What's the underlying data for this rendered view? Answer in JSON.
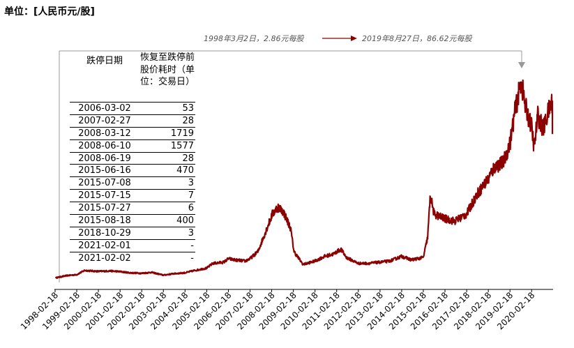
{
  "unit_label": "单位：[人民币元/股]",
  "annotation": {
    "start_text": "1998年3月2日，2.86元每股",
    "end_text": "2019年8月27日，86.62元每股"
  },
  "table": {
    "headers": [
      "跌停日期",
      "恢复至跌停前股价耗时（单位：交易日）"
    ],
    "rows": [
      [
        "2006-03-02",
        "53"
      ],
      [
        "2007-02-27",
        "28"
      ],
      [
        "2008-03-12",
        "1719"
      ],
      [
        "2008-06-10",
        "1577"
      ],
      [
        "2008-06-19",
        "28"
      ],
      [
        "2015-06-16",
        "470"
      ],
      [
        "2015-07-08",
        "3"
      ],
      [
        "2015-07-15",
        "7"
      ],
      [
        "2015-07-27",
        "6"
      ],
      [
        "2015-08-18",
        "400"
      ],
      [
        "2018-10-29",
        "3"
      ],
      [
        "2021-02-01",
        "-"
      ],
      [
        "2021-02-02",
        "-"
      ]
    ]
  },
  "chart_data": {
    "type": "line",
    "title": "",
    "xlabel": "",
    "ylabel": "",
    "ylim": [
      0,
      92
    ],
    "color": "#8b0000",
    "x_tick_labels": [
      "1998-02-18",
      "1999-02-18",
      "2000-02-18",
      "2001-02-18",
      "2002-02-18",
      "2003-02-18",
      "2004-02-18",
      "2005-02-18",
      "2006-02-18",
      "2007-02-18",
      "2008-02-18",
      "2009-02-18",
      "2010-02-18",
      "2011-02-18",
      "2012-02-18",
      "2013-02-18",
      "2014-02-18",
      "2015-02-18",
      "2016-02-18",
      "2017-02-18",
      "2018-02-18",
      "2019-02-18",
      "2020-02-18"
    ],
    "series": [
      {
        "values": [
          {
            "x": "1998-03-02",
            "y": 2.86
          },
          {
            "x": "1998-09-01",
            "y": 3.8
          },
          {
            "x": "1999-02-18",
            "y": 4.2
          },
          {
            "x": "1999-07-01",
            "y": 6.0
          },
          {
            "x": "2000-02-18",
            "y": 5.6
          },
          {
            "x": "2000-09-01",
            "y": 5.8
          },
          {
            "x": "2001-02-18",
            "y": 5.5
          },
          {
            "x": "2001-08-01",
            "y": 5.0
          },
          {
            "x": "2002-02-18",
            "y": 4.8
          },
          {
            "x": "2002-08-01",
            "y": 5.2
          },
          {
            "x": "2003-02-18",
            "y": 4.0
          },
          {
            "x": "2003-08-01",
            "y": 4.6
          },
          {
            "x": "2004-02-18",
            "y": 5.0
          },
          {
            "x": "2004-08-01",
            "y": 6.0
          },
          {
            "x": "2005-02-18",
            "y": 7.0
          },
          {
            "x": "2005-06-01",
            "y": 9.0
          },
          {
            "x": "2005-12-01",
            "y": 9.5
          },
          {
            "x": "2006-02-18",
            "y": 11.0
          },
          {
            "x": "2006-06-01",
            "y": 10.5
          },
          {
            "x": "2006-12-01",
            "y": 10.0
          },
          {
            "x": "2007-02-18",
            "y": 11.0
          },
          {
            "x": "2007-07-01",
            "y": 14.0
          },
          {
            "x": "2007-12-01",
            "y": 24.0
          },
          {
            "x": "2008-03-01",
            "y": 30.0
          },
          {
            "x": "2008-06-01",
            "y": 33.0
          },
          {
            "x": "2008-09-01",
            "y": 31.0
          },
          {
            "x": "2009-01-01",
            "y": 24.0
          },
          {
            "x": "2009-03-01",
            "y": 14.0
          },
          {
            "x": "2009-08-01",
            "y": 8.5
          },
          {
            "x": "2010-02-18",
            "y": 10.0
          },
          {
            "x": "2010-08-01",
            "y": 12.0
          },
          {
            "x": "2011-01-01",
            "y": 13.0
          },
          {
            "x": "2011-02-18",
            "y": 14.0
          },
          {
            "x": "2011-05-01",
            "y": 15.0
          },
          {
            "x": "2011-08-01",
            "y": 11.5
          },
          {
            "x": "2012-02-18",
            "y": 9.0
          },
          {
            "x": "2012-08-01",
            "y": 9.0
          },
          {
            "x": "2013-02-18",
            "y": 9.5
          },
          {
            "x": "2013-08-01",
            "y": 10.0
          },
          {
            "x": "2014-02-18",
            "y": 12.0
          },
          {
            "x": "2014-08-01",
            "y": 10.5
          },
          {
            "x": "2015-02-18",
            "y": 11.5
          },
          {
            "x": "2015-05-01",
            "y": 20.0
          },
          {
            "x": "2015-06-16",
            "y": 38.0
          },
          {
            "x": "2015-08-18",
            "y": 30.0
          },
          {
            "x": "2016-02-18",
            "y": 28.0
          },
          {
            "x": "2016-08-01",
            "y": 27.0
          },
          {
            "x": "2017-02-18",
            "y": 30.0
          },
          {
            "x": "2017-08-01",
            "y": 38.0
          },
          {
            "x": "2018-02-18",
            "y": 45.0
          },
          {
            "x": "2018-06-01",
            "y": 50.0
          },
          {
            "x": "2018-10-29",
            "y": 52.0
          },
          {
            "x": "2019-02-18",
            "y": 60.0
          },
          {
            "x": "2019-05-01",
            "y": 72.0
          },
          {
            "x": "2019-08-27",
            "y": 86.62
          },
          {
            "x": "2019-11-01",
            "y": 76.0
          },
          {
            "x": "2020-02-18",
            "y": 67.0
          },
          {
            "x": "2020-04-01",
            "y": 58.0
          },
          {
            "x": "2020-06-01",
            "y": 72.0
          },
          {
            "x": "2020-09-01",
            "y": 66.0
          },
          {
            "x": "2020-12-01",
            "y": 74.0
          },
          {
            "x": "2021-02-01",
            "y": 78.0
          },
          {
            "x": "2021-02-02",
            "y": 64.0
          }
        ]
      }
    ]
  }
}
